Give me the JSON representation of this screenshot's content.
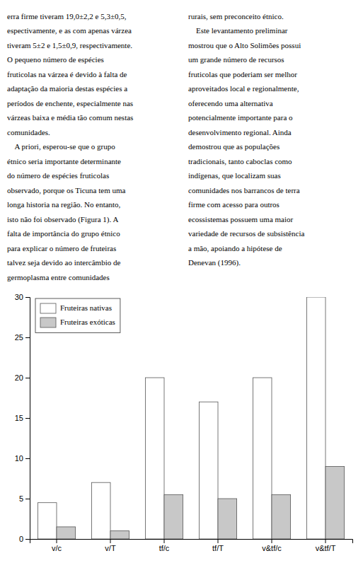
{
  "chart_data": {
    "type": "bar",
    "annotations": [
      [
        "erra firme tiveram 19,0±2,2 e 5,3±0,5,",
        "espectivamente, e as com apenas várzea",
        "tiveram 5±2 e 1,5±0,9, respectivamente.",
        "O pequeno número de espécies",
        "fruticolas na várzea é devido à falta de",
        "adaptação da maioria destas espécies a",
        "períodos de enchente, especialmente nas",
        "várzeas baixa e média tão comum nestas",
        "comunidades.",
        "    A priori, esperou-se que o grupo",
        "étnico seria importante determinante",
        "do número de espécies fruticolas",
        "observado, porque os Ticuna tem uma",
        "longa historia na região. No entanto,",
        "isto não foi observado (Figura 1). A",
        "falta de importância do grupo étnico",
        "para explicar o número de fruteiras",
        "talvez seja devido ao intercâmbio de",
        "germoplasma entre comunidades"
      ],
      [
        "rurais, sem preconceito étnico.",
        "    Este levantamento preliminar",
        "mostrou que o Alto Solimões possui",
        "um grande número de recursos",
        "fruticolas que poderiam ser melhor",
        "aproveitados local e regionalmente,",
        "oferecendo uma alternativa",
        "potencialmente importante para o",
        "desenvolvimento regional. Ainda",
        "demostrou que as populações",
        "tradicionais, tanto caboclas como",
        "indígenas, que localizam suas",
        "comunidades nos barrancos de terra",
        "firme com acesso para outros",
        "ecossistemas possuem uma maior",
        "variedade de recursos de subsistência",
        "a mão, apoiando a hipótese de",
        "Denevan (1996)."
      ]
    ],
    "categories": [
      "v/c",
      "v/T",
      "tf/c",
      "tf/T",
      "v&tf/c",
      "v&tf/T"
    ],
    "series": [
      {
        "name": "Fruteiras nativas",
        "color": "white",
        "values": [
          4.5,
          7.0,
          20.0,
          17.0,
          20.0,
          30.0
        ]
      },
      {
        "name": "Fruteiras exóticas",
        "color": "#c8c8c8",
        "values": [
          1.5,
          1.0,
          5.5,
          5.0,
          5.5,
          9.0
        ]
      }
    ],
    "ylim": [
      0,
      30
    ],
    "yticks": [
      0,
      5,
      10,
      15,
      20,
      25,
      30
    ],
    "grid": false,
    "legend": "upper left"
  }
}
